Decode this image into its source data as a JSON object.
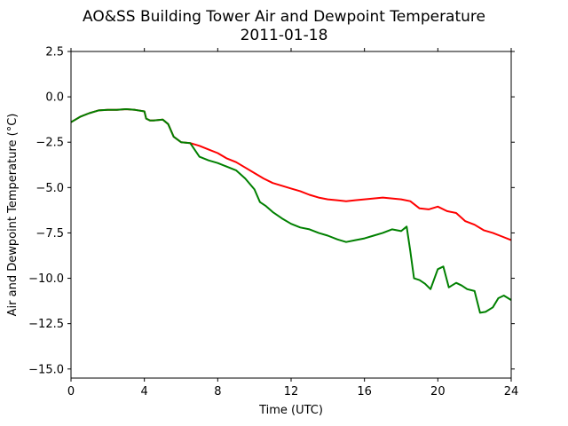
{
  "chart_data": {
    "type": "line",
    "title": "AO&SS Building Tower Air and Dewpoint Temperature",
    "subtitle": "2011-01-18",
    "xlabel": "Time (UTC)",
    "ylabel": "Air and Dewpoint Temperature (°C)",
    "xlim": [
      0,
      24
    ],
    "ylim": [
      -15.5,
      2.5
    ],
    "xticks": [
      0,
      4,
      8,
      12,
      16,
      20,
      24
    ],
    "xtick_labels": [
      "0",
      "4",
      "8",
      "12",
      "16",
      "20",
      "24"
    ],
    "yticks": [
      2.5,
      0.0,
      -2.5,
      -5.0,
      -7.5,
      -10.0,
      -12.5,
      -15.0
    ],
    "ytick_labels": [
      "2.5",
      "0.0",
      "−2.5",
      "−5.0",
      "−7.5",
      "−10.0",
      "−12.5",
      "−15.0"
    ],
    "grid": false,
    "series": [
      {
        "color": "#ff0000",
        "x": [
          0,
          0.5,
          1,
          1.5,
          2,
          2.5,
          3,
          3.5,
          4,
          4.1,
          4.3,
          4.5,
          5,
          5.3,
          5.6,
          6,
          6.5,
          7,
          7.5,
          8,
          8.5,
          9,
          9.5,
          10,
          10.5,
          11,
          11.5,
          12,
          12.5,
          13,
          13.5,
          14,
          14.5,
          15,
          15.5,
          16,
          16.5,
          17,
          17.5,
          18,
          18.5,
          19,
          19.5,
          20,
          20.5,
          21,
          21.5,
          22,
          22.5,
          23,
          23.5,
          24
        ],
        "y": [
          -1.4,
          -1.1,
          -0.9,
          -0.75,
          -0.72,
          -0.72,
          -0.68,
          -0.72,
          -0.8,
          -1.2,
          -1.3,
          -1.3,
          -1.25,
          -1.5,
          -2.2,
          -2.5,
          -2.55,
          -2.7,
          -2.9,
          -3.1,
          -3.4,
          -3.6,
          -3.9,
          -4.2,
          -4.5,
          -4.75,
          -4.9,
          -5.05,
          -5.2,
          -5.4,
          -5.55,
          -5.65,
          -5.7,
          -5.75,
          -5.7,
          -5.65,
          -5.6,
          -5.55,
          -5.6,
          -5.65,
          -5.75,
          -6.15,
          -6.2,
          -6.05,
          -6.3,
          -6.4,
          -6.85,
          -7.05,
          -7.35,
          -7.5,
          -7.7,
          -7.9
        ]
      },
      {
        "color": "#008000",
        "x": [
          0,
          0.5,
          1,
          1.5,
          2,
          2.5,
          3,
          3.5,
          4,
          4.1,
          4.3,
          4.5,
          5,
          5.3,
          5.6,
          6,
          6.5,
          7,
          7.5,
          8,
          8.5,
          9,
          9.5,
          10,
          10.3,
          10.6,
          11,
          11.5,
          12,
          12.5,
          13,
          13.5,
          14,
          14.5,
          15,
          15.5,
          16,
          16.5,
          17,
          17.5,
          18,
          18.3,
          18.5,
          18.7,
          19,
          19.3,
          19.6,
          20,
          20.3,
          20.6,
          21,
          21.3,
          21.6,
          22,
          22.3,
          22.6,
          23,
          23.3,
          23.6,
          24
        ],
        "y": [
          -1.4,
          -1.1,
          -0.9,
          -0.75,
          -0.72,
          -0.72,
          -0.68,
          -0.72,
          -0.8,
          -1.2,
          -1.3,
          -1.3,
          -1.25,
          -1.5,
          -2.2,
          -2.5,
          -2.55,
          -3.3,
          -3.5,
          -3.65,
          -3.85,
          -4.05,
          -4.5,
          -5.1,
          -5.8,
          -6.0,
          -6.35,
          -6.7,
          -7.0,
          -7.2,
          -7.3,
          -7.5,
          -7.65,
          -7.85,
          -8.0,
          -7.9,
          -7.8,
          -7.65,
          -7.5,
          -7.3,
          -7.4,
          -7.15,
          -8.5,
          -10.0,
          -10.1,
          -10.3,
          -10.6,
          -9.5,
          -9.35,
          -10.5,
          -10.25,
          -10.4,
          -10.6,
          -10.7,
          -11.9,
          -11.85,
          -11.6,
          -11.1,
          -10.95,
          -11.2
        ]
      }
    ]
  }
}
